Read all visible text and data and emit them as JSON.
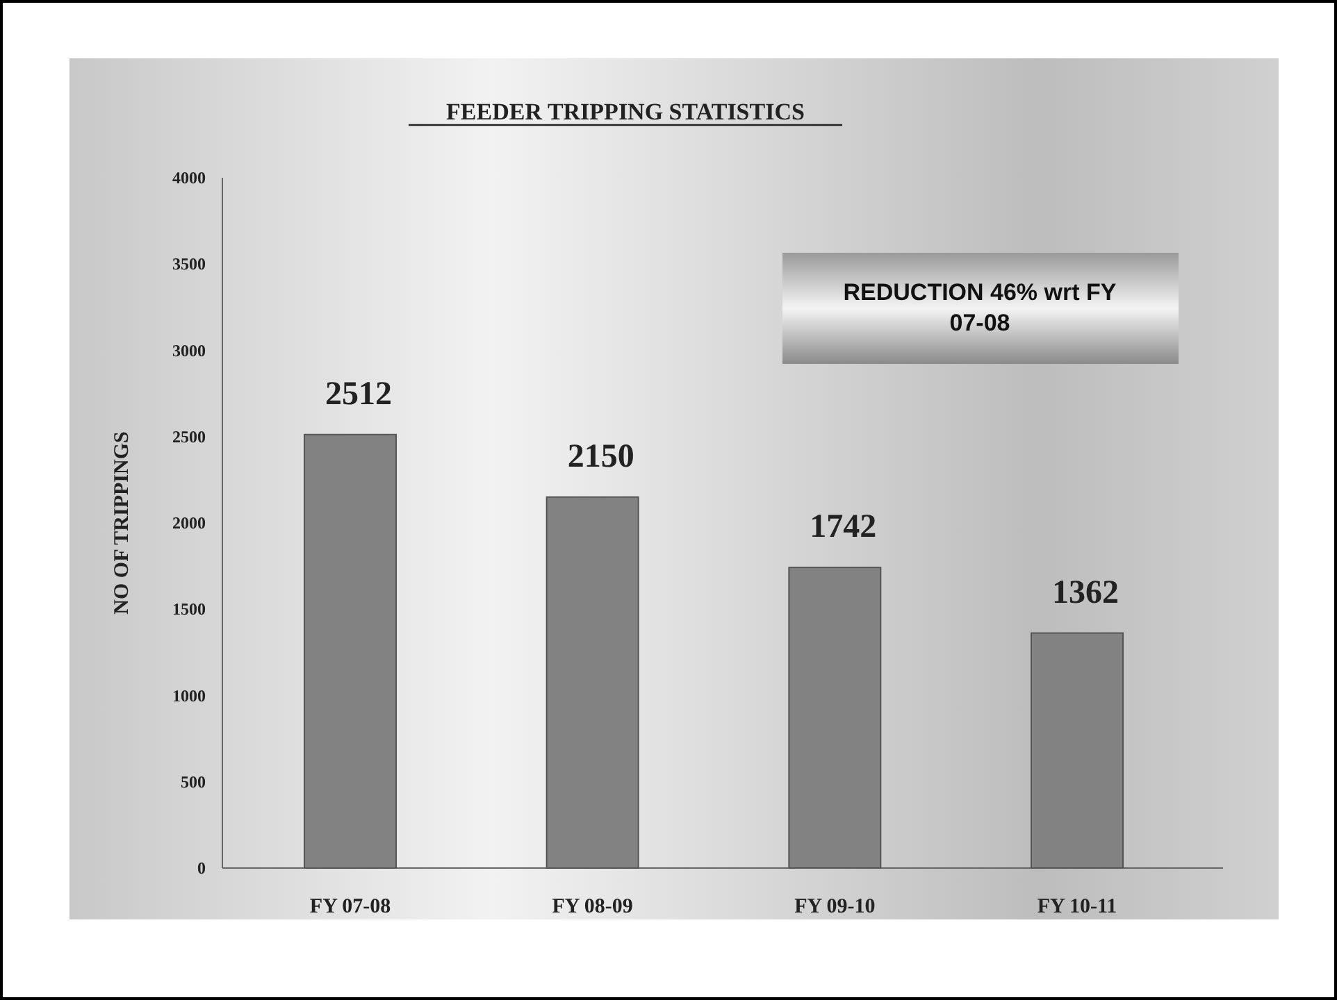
{
  "chart_data": {
    "type": "bar",
    "title": "FEEDER TRIPPING STATISTICS",
    "ylabel": "NO OF TRIPPINGS",
    "categories": [
      "FY 07-08",
      "FY 08-09",
      "FY 09-10",
      "FY 10-11"
    ],
    "values": [
      2512,
      2150,
      1742,
      1362
    ],
    "color": "#828282",
    "ylim": [
      0,
      4000
    ],
    "yticks": [
      0,
      500,
      1000,
      1500,
      2000,
      2500,
      3000,
      3500,
      4000
    ],
    "grid": false,
    "data_labels": true,
    "annotations": [
      "REDUCTION 46% wrt FY 07-08"
    ]
  }
}
